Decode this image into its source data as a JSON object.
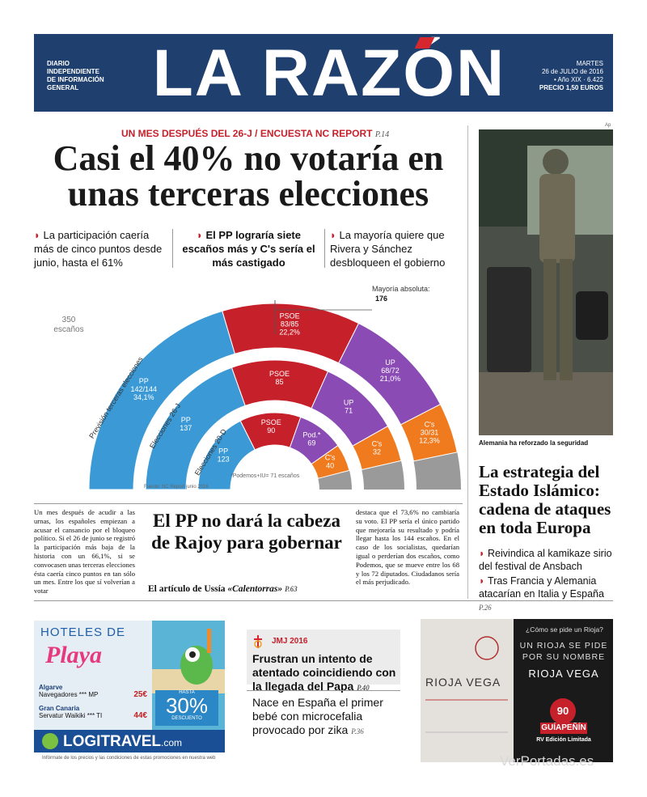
{
  "masthead": {
    "title": "LA RAZÓN",
    "left_lines": [
      "DIARIO",
      "INDEPENDIENTE",
      "DE INFORMACIÓN",
      "GENERAL"
    ],
    "weekday": "MARTES",
    "date": "26 de JULIO de 2016",
    "issue": "• Año XIX · 6.422",
    "price": "PRECIO 1,50 EUROS"
  },
  "lead": {
    "kicker": "UN MES DESPUÉS DEL 26-J / ENCUESTA NC REPORT",
    "kicker_page": "P.14",
    "headline": "Casi el 40% no votaría en unas terceras elecciones",
    "sub1": "La participación caería más de cinco puntos desde junio, hasta el 61%",
    "sub2": "El PP lograría siete escaños más y C's sería el más castigado",
    "sub3": "La mayoría quiere que Rivera y Sánchez desbloqueen el gobierno"
  },
  "chart_data": {
    "type": "bar",
    "chart_form": "stacked semicircle hemicycle",
    "total_label": "350",
    "total_unit": "escaños",
    "majority_label": "Mayoría absoluta:",
    "majority_value": "176",
    "source": "Fuente: NC Report junio 2016",
    "footnote": "*Podemos+IU= 71 escaños",
    "colors": {
      "PP": "#3b9ad6",
      "PSOE": "#c6202a",
      "UP": "#8a4bb5",
      "Cs": "#f07a1e",
      "Otros": "#9a9a9a"
    },
    "series": [
      {
        "name": "Previsión terceras elecciones",
        "parties": [
          {
            "party": "PP",
            "seats_low": 142,
            "seats_high": 144,
            "label": "PP",
            "value_label": "142/144",
            "pct_label": "34,1%"
          },
          {
            "party": "PSOE",
            "seats_low": 83,
            "seats_high": 85,
            "label": "PSOE",
            "value_label": "83/85",
            "pct_label": "22,2%"
          },
          {
            "party": "UP",
            "seats_low": 68,
            "seats_high": 72,
            "label": "UP",
            "value_label": "68/72",
            "pct_label": "21,0%"
          },
          {
            "party": "Cs",
            "seats_low": 30,
            "seats_high": 31,
            "label": "C's",
            "value_label": "30/31",
            "pct_label": "12,3%"
          }
        ]
      },
      {
        "name": "Elecciones 26-J",
        "parties": [
          {
            "party": "PP",
            "seats": 137,
            "label": "PP",
            "value_label": "137"
          },
          {
            "party": "PSOE",
            "seats": 85,
            "label": "PSOE",
            "value_label": "85"
          },
          {
            "party": "UP",
            "seats": 71,
            "label": "UP",
            "value_label": "71"
          },
          {
            "party": "Cs",
            "seats": 32,
            "label": "C's",
            "value_label": "32"
          }
        ]
      },
      {
        "name": "Elecciones 20-D",
        "parties": [
          {
            "party": "PP",
            "seats": 123,
            "label": "PP",
            "value_label": "123"
          },
          {
            "party": "PSOE",
            "seats": 90,
            "label": "PSOE",
            "value_label": "90"
          },
          {
            "party": "UP",
            "seats": 69,
            "label": "Pod.*",
            "value_label": "69"
          },
          {
            "party": "Cs",
            "seats": 40,
            "label": "C's",
            "value_label": "40"
          }
        ]
      }
    ]
  },
  "side": {
    "photo_credit": "Ap",
    "photo_caption": "Alemania ha reforzado la seguridad",
    "headline": "La estrategia del Estado Islámico: cadena de ataques en toda Europa",
    "b1": "Reivindica al kamikaze sirio del festival de Ansbach",
    "b2": "Tras Francia y Alemania atacarían en Italia y España",
    "b2_page": "P.26"
  },
  "lower": {
    "body_left": "Un mes después de acudir a las urnas, los españoles empiezan a acusar el cansancio por el bloqueo político. Si el 26 de junio se registró la participación más baja de la historia con un 66,1%, si se convocasen unas terceras elecciones ésta caería cinco puntos en tan sólo un mes. Entre los que sí volverían a votar",
    "headline": "El PP no dará la cabeza de Rajoy para gobernar",
    "column_prefix": "El artículo de Ussía",
    "column_title": "«Calentorras»",
    "column_page": "P.63",
    "body_right": "destaca que el 73,6% no cambiaría su voto. El PP sería el único partido que mejoraría su resultado y podría llegar hasta los 144 escaños. En el caso de los socialistas, quedarían igual o perderían dos escaños, como Podemos, que se mueve entre los 68 y los 72 diputados. Ciudadanos sería el más perjudicado."
  },
  "ad1": {
    "hoteles": "HOTELES DE",
    "playa": "Playa",
    "r1_name": "Algarve",
    "r1_hotel": "Navegadores *** MP",
    "r1_price": "25€",
    "r2_name": "Gran Canaria",
    "r2_hotel": "Servatur Waikiki *** TI",
    "r2_price": "44€",
    "disc_small": "HASTA",
    "disc_value": "30%",
    "disc_label": "DESCUENTO",
    "logo": "LOGITRAVEL",
    "logo_tld": ".com",
    "fine": "Infórmate de los precios y las condiciones de estas promociones en nuestra web"
  },
  "middle": {
    "tag": "JMJ 2016",
    "headline": "Frustran un intento de atentado coincidiendo con la llegada del Papa",
    "headline_page": "P.40",
    "b2": "Nace en España el primer bebé con microcefalia provocado por zika",
    "b2_page": "P.36"
  },
  "ad2": {
    "question": "¿Cómo se pide un Rioja?",
    "tagline1": "UN RIOJA SE PIDE",
    "tagline2": "POR SU NOMBRE",
    "brand": "RIOJA VEGA",
    "bottle_label": "RIOJA VEGA",
    "score": "90",
    "guia": "GUÍAPEÑÍN",
    "edition": "RV Edición Limitada"
  },
  "watermark": "VerPortadas.es"
}
